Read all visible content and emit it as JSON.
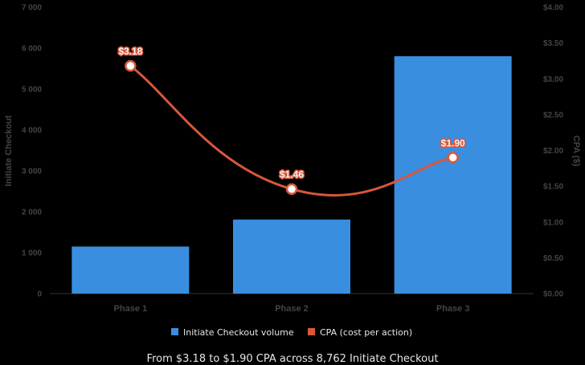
{
  "chart_data": {
    "type": "bar",
    "categories": [
      "Phase 1",
      "Phase 2",
      "Phase 3"
    ],
    "series": [
      {
        "name": "Initiate Checkout volume",
        "kind": "bar",
        "axis": "left",
        "color": "#3a8ee0",
        "values": [
          1150,
          1810,
          5802
        ]
      },
      {
        "name": "CPA (cost per action)",
        "kind": "line",
        "axis": "right",
        "color": "#d8573a",
        "values": [
          3.18,
          1.46,
          1.9
        ],
        "labels": [
          "$3.18",
          "$1.46",
          "$1.90"
        ]
      }
    ],
    "ylabel": "Initiate Checkout",
    "y2label": "CPA ($)",
    "ylim": [
      0,
      7000
    ],
    "y2lim": [
      0,
      4
    ],
    "y_ticks": [
      "0",
      "1 000",
      "2 000",
      "3 000",
      "4 000",
      "5 000",
      "6 000",
      "7 000"
    ],
    "y2_ticks": [
      "$0.00",
      "$0.50",
      "$1.00",
      "$1.50",
      "$2.00",
      "$2.50",
      "$3.00",
      "$3.50",
      "$4.00"
    ],
    "legend_position": "bottom",
    "caption": "From $3.18 to $1.90 CPA across 8,762 Initiate Checkout"
  }
}
